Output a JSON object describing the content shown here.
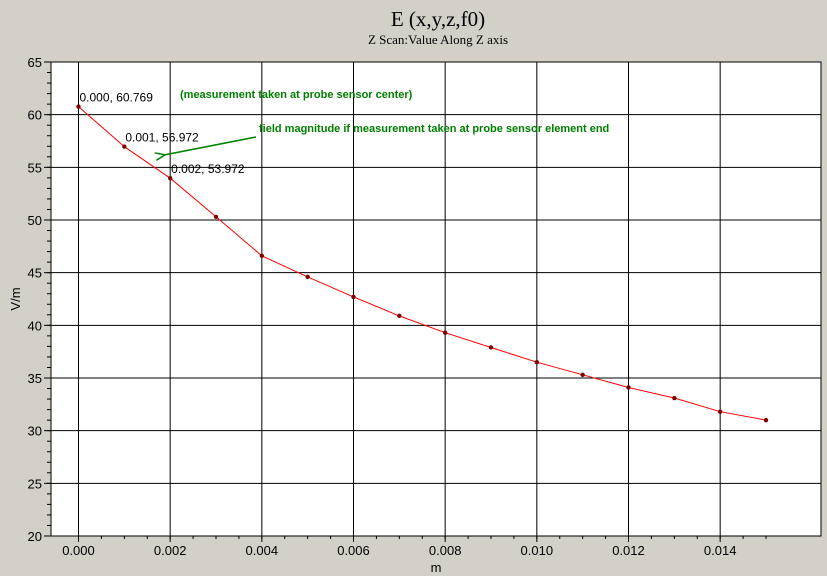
{
  "chart_data": {
    "type": "line",
    "title": "E (x,y,z,f0)",
    "subtitle": "Z Scan:Value Along Z axis",
    "xlabel": "m",
    "ylabel": "V/m",
    "xlim": [
      -0.0006,
      0.0162
    ],
    "ylim": [
      20,
      65
    ],
    "xticks": [
      "0.000",
      "0.002",
      "0.004",
      "0.006",
      "0.008",
      "0.010",
      "0.012",
      "0.014"
    ],
    "yticks": [
      "20",
      "25",
      "30",
      "35",
      "40",
      "45",
      "50",
      "55",
      "60",
      "65"
    ],
    "grid": true,
    "series": [
      {
        "x": [
          0.0,
          0.001,
          0.002,
          0.003,
          0.004,
          0.005,
          0.006,
          0.007,
          0.008,
          0.009,
          0.01,
          0.011,
          0.012,
          0.013,
          0.014,
          0.015
        ],
        "y": [
          60.769,
          56.972,
          53.972,
          50.3,
          46.6,
          44.6,
          42.7,
          40.9,
          39.3,
          37.9,
          36.5,
          35.3,
          34.1,
          33.1,
          31.8,
          31.0
        ],
        "color": "#ff0000",
        "marker_color": "#800000"
      }
    ],
    "point_labels": [
      {
        "x": 0.0,
        "y": 60.769,
        "text": "0.000, 60.769"
      },
      {
        "x": 0.001,
        "y": 56.972,
        "text": "0.001, 56.972"
      },
      {
        "x": 0.002,
        "y": 53.972,
        "text": "0.002, 53.972"
      }
    ],
    "annotations": [
      {
        "text": "(measurement taken at probe sensor center)",
        "color": "#008000"
      },
      {
        "text": "field magnitude if measurement taken at probe sensor element end",
        "color": "#008000"
      }
    ]
  }
}
